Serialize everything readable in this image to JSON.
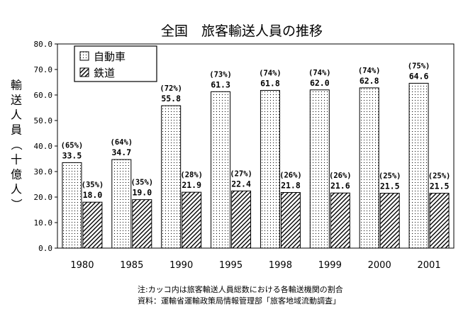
{
  "chart_data": {
    "type": "bar",
    "title": "全国　旅客輸送人員の推移",
    "ylabel": "輸送人員（十億人）",
    "xlabel": "",
    "ylim": [
      0,
      80
    ],
    "yticks": [
      "0.0",
      "10.0",
      "20.0",
      "30.0",
      "40.0",
      "50.0",
      "60.0",
      "70.0",
      "80.0"
    ],
    "grid": false,
    "legend": "top-left",
    "categories": [
      "1980",
      "1985",
      "1990",
      "1995",
      "1998",
      "1999",
      "2000",
      "2001"
    ],
    "series": [
      {
        "name": "自動車",
        "pattern": "dots",
        "values": [
          33.5,
          34.7,
          55.8,
          61.3,
          61.8,
          62.0,
          62.8,
          64.6
        ],
        "labels": [
          "33.5",
          "34.7",
          "55.8",
          "61.3",
          "61.8",
          "62.0",
          "62.8",
          "64.6"
        ],
        "shares": [
          "(65%)",
          "(64%)",
          "(72%)",
          "(73%)",
          "(74%)",
          "(74%)",
          "(74%)",
          "(75%)"
        ]
      },
      {
        "name": "鉄道",
        "pattern": "hatch",
        "values": [
          18.0,
          19.0,
          21.9,
          22.4,
          21.8,
          21.6,
          21.5,
          21.5
        ],
        "labels": [
          "18.0",
          "19.0",
          "21.9",
          "22.4",
          "21.8",
          "21.6",
          "21.5",
          "21.5"
        ],
        "shares": [
          "(35%)",
          "(35%)",
          "(28%)",
          "(27%)",
          "(26%)",
          "(26%)",
          "(25%)",
          "(25%)"
        ]
      }
    ],
    "notes": [
      "注:カッコ内は旅客輸送人員総数における各輸送機関の割合",
      "資料：運輸省運輸政策局情報管理部「旅客地域流動調査」"
    ]
  }
}
